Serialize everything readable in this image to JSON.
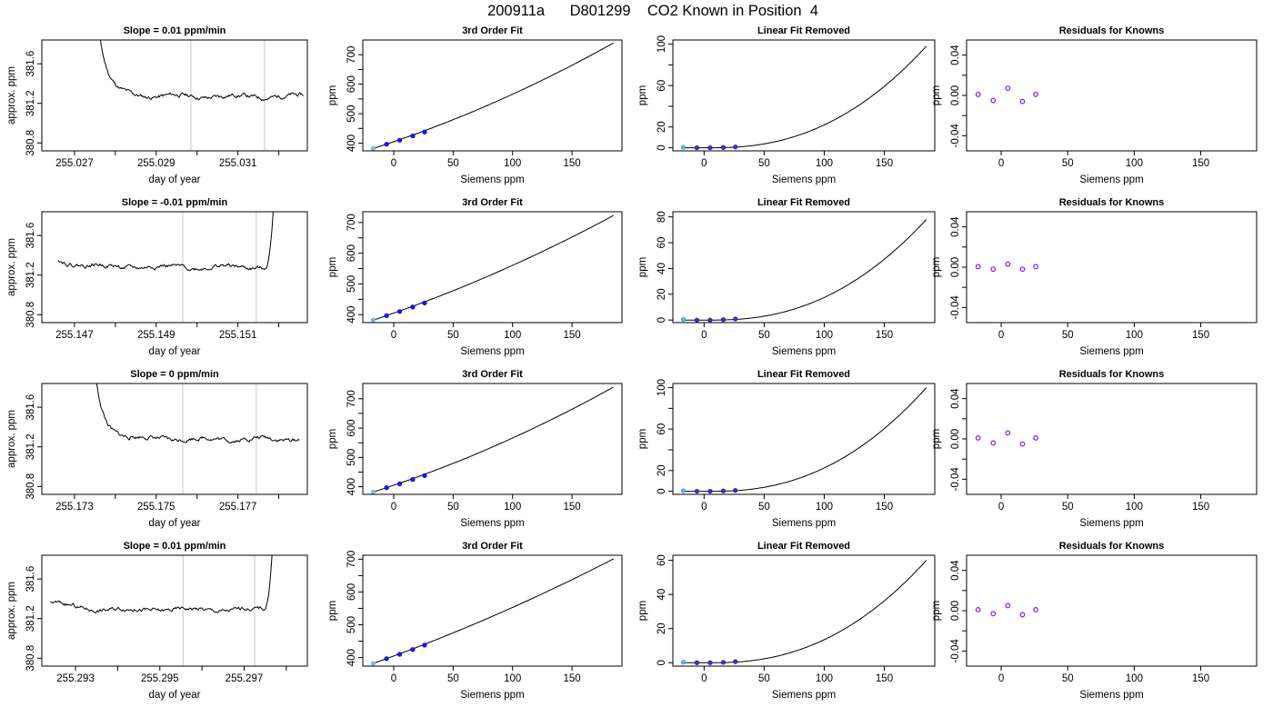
{
  "figure": {
    "title": "200911a      D801299    CO2 Known in Position  4"
  },
  "chart_data": [
    {
      "row": 1,
      "col": 1,
      "type": "line",
      "title": "Slope =  0.01  ppm/min",
      "xlabel": "day of year",
      "ylabel": "approx. ppm",
      "xlim": [
        255.0262,
        255.0327
      ],
      "ylim": [
        380.72,
        381.84
      ],
      "xticks": [
        255.027,
        255.028,
        255.029,
        255.03,
        255.031,
        255.032
      ],
      "xtick_labels": [
        "255.027",
        "",
        "255.029",
        "",
        "255.031",
        ""
      ],
      "yticks": [
        380.8,
        381.2,
        381.6
      ],
      "ytick_labels": [
        "380.8",
        "381.2",
        "381.6"
      ],
      "vlines": [
        255.02985,
        255.03165
      ],
      "trace_start": 255.0274,
      "trace_end": 255.0326,
      "trace": "decay",
      "trace_level": 381.27,
      "seed": 11
    },
    {
      "row": 1,
      "col": 2,
      "type": "line",
      "title": "3rd Order Fit",
      "xlabel": "Siemens ppm",
      "ylabel": "ppm",
      "xlim": [
        -26,
        192
      ],
      "ylim": [
        374,
        750
      ],
      "xticks": [
        0,
        50,
        100,
        150
      ],
      "yticks": [
        400,
        500,
        600,
        700
      ],
      "ytick_labels": [
        "400",
        "500",
        "600",
        "700"
      ],
      "minor_yticks": [
        450,
        550,
        650
      ],
      "points_x": [
        -17.3,
        -6,
        5,
        16,
        26
      ],
      "points_y": [
        382,
        396.6,
        410,
        424.7,
        438
      ],
      "curve_x_start": -17.3,
      "curve_x_end": 185,
      "curve_y_start": 382,
      "curve_y_end": 740
    },
    {
      "row": 1,
      "col": 3,
      "type": "line",
      "title": "Linear Fit Removed",
      "xlabel": "Siemens ppm",
      "ylabel": "ppm",
      "xlim": [
        -26,
        192
      ],
      "ylim": [
        -3,
        104
      ],
      "xticks": [
        0,
        50,
        100,
        150
      ],
      "yticks": [
        0,
        20,
        60,
        100
      ],
      "ytick_labels": [
        "0",
        "20",
        "60",
        "100"
      ],
      "minor_yticks": [
        40,
        80
      ],
      "points_x": [
        -17.3,
        -6,
        5,
        16,
        26
      ],
      "points_y": [
        0.4,
        0,
        0,
        0.3,
        0.8
      ],
      "curve_x_start": -17.3,
      "curve_x_end": 185,
      "curve_peak": 98
    },
    {
      "row": 1,
      "col": 4,
      "type": "scatter",
      "title": "Residuals for Knowns",
      "xlabel": "Siemens ppm",
      "ylabel": "ppm",
      "xlim": [
        -26,
        192
      ],
      "ylim": [
        -0.055,
        0.055
      ],
      "xticks": [
        0,
        50,
        100,
        150
      ],
      "yticks": [
        -0.04,
        0,
        0.04
      ],
      "ytick_labels": [
        "-0.04",
        "0.00",
        "0.04"
      ],
      "minor_yticks": [
        -0.02,
        0.02
      ],
      "points_x": [
        -17.3,
        -6,
        5,
        16,
        26
      ],
      "points_y": [
        0.001,
        -0.005,
        0.007,
        -0.006,
        0.001
      ]
    },
    {
      "row": 2,
      "col": 1,
      "type": "line",
      "title": "Slope =  -0.01  ppm/min",
      "xlabel": "day of year",
      "ylabel": "approx. ppm",
      "xlim": [
        255.1462,
        255.1527
      ],
      "ylim": [
        380.72,
        381.84
      ],
      "xticks": [
        255.147,
        255.148,
        255.149,
        255.15,
        255.151,
        255.152
      ],
      "xtick_labels": [
        "255.147",
        "",
        "255.149",
        "",
        "255.151",
        ""
      ],
      "yticks": [
        380.8,
        381.2,
        381.6
      ],
      "ytick_labels": [
        "380.8",
        "381.2",
        "381.6"
      ],
      "vlines": [
        255.14965,
        255.15145
      ],
      "trace_start": 255.1466,
      "trace_end": 255.152,
      "trace": "rise",
      "trace_level": 381.28,
      "seed": 22
    },
    {
      "row": 2,
      "col": 2,
      "type": "line",
      "title": "3rd Order Fit",
      "xlabel": "Siemens ppm",
      "ylabel": "ppm",
      "xlim": [
        -26,
        192
      ],
      "ylim": [
        374,
        735
      ],
      "xticks": [
        0,
        50,
        100,
        150
      ],
      "yticks": [
        400,
        500,
        600,
        700
      ],
      "ytick_labels": [
        "400",
        "500",
        "600",
        "700"
      ],
      "minor_yticks": [
        450,
        550,
        650
      ],
      "points_x": [
        -17.3,
        -6,
        5,
        16,
        26
      ],
      "points_y": [
        382,
        396.6,
        410,
        424.7,
        438
      ],
      "curve_x_start": -17.3,
      "curve_x_end": 185,
      "curve_y_start": 382,
      "curve_y_end": 723
    },
    {
      "row": 2,
      "col": 3,
      "type": "line",
      "title": "Linear Fit Removed",
      "xlabel": "Siemens ppm",
      "ylabel": "ppm",
      "xlim": [
        -26,
        192
      ],
      "ylim": [
        -2,
        84
      ],
      "xticks": [
        0,
        50,
        100,
        150
      ],
      "yticks": [
        0,
        20,
        40,
        60,
        80
      ],
      "ytick_labels": [
        "0",
        "20",
        "40",
        "60",
        "80"
      ],
      "minor_yticks": [],
      "points_x": [
        -17.3,
        -6,
        5,
        16,
        26
      ],
      "points_y": [
        0.4,
        0,
        0,
        0.3,
        0.8
      ],
      "curve_x_start": -17.3,
      "curve_x_end": 185,
      "curve_peak": 78
    },
    {
      "row": 2,
      "col": 4,
      "type": "scatter",
      "title": "Residuals for Knowns",
      "xlabel": "Siemens ppm",
      "ylabel": "ppm",
      "xlim": [
        -26,
        192
      ],
      "ylim": [
        -0.055,
        0.055
      ],
      "xticks": [
        0,
        50,
        100,
        150
      ],
      "yticks": [
        -0.04,
        0,
        0.04
      ],
      "ytick_labels": [
        "-0.04",
        "0.00",
        "0.04"
      ],
      "minor_yticks": [
        -0.02,
        0.02
      ],
      "points_x": [
        -17.3,
        -6,
        5,
        16,
        26
      ],
      "points_y": [
        0.0005,
        -0.002,
        0.003,
        -0.002,
        0.0005
      ]
    },
    {
      "row": 3,
      "col": 1,
      "type": "line",
      "title": "Slope =  0  ppm/min",
      "xlabel": "day of year",
      "ylabel": "approx. ppm",
      "xlim": [
        255.1722,
        255.1787
      ],
      "ylim": [
        380.72,
        381.84
      ],
      "xticks": [
        255.173,
        255.174,
        255.175,
        255.176,
        255.177,
        255.178
      ],
      "xtick_labels": [
        "255.173",
        "",
        "255.175",
        "",
        "255.177",
        ""
      ],
      "yticks": [
        380.8,
        381.2,
        381.6
      ],
      "ytick_labels": [
        "380.8",
        "381.2",
        "381.6"
      ],
      "vlines": [
        255.17565,
        255.17745
      ],
      "trace_start": 255.1733,
      "trace_end": 255.1785,
      "trace": "decay",
      "trace_level": 381.28,
      "seed": 33
    },
    {
      "row": 3,
      "col": 2,
      "type": "line",
      "title": "3rd Order Fit",
      "xlabel": "Siemens ppm",
      "ylabel": "ppm",
      "xlim": [
        -26,
        192
      ],
      "ylim": [
        374,
        752
      ],
      "xticks": [
        0,
        50,
        100,
        150
      ],
      "yticks": [
        400,
        500,
        600,
        700
      ],
      "ytick_labels": [
        "400",
        "500",
        "600",
        "700"
      ],
      "minor_yticks": [
        450,
        550,
        650
      ],
      "points_x": [
        -17.3,
        -6,
        5,
        16,
        26
      ],
      "points_y": [
        382,
        396.6,
        410,
        424.7,
        438
      ],
      "curve_x_start": -17.3,
      "curve_x_end": 185,
      "curve_y_start": 382,
      "curve_y_end": 740
    },
    {
      "row": 3,
      "col": 3,
      "type": "line",
      "title": "Linear Fit Removed",
      "xlabel": "Siemens ppm",
      "ylabel": "ppm",
      "xlim": [
        -26,
        192
      ],
      "ylim": [
        -3,
        104
      ],
      "xticks": [
        0,
        50,
        100,
        150
      ],
      "yticks": [
        0,
        20,
        60,
        100
      ],
      "ytick_labels": [
        "0",
        "20",
        "60",
        "100"
      ],
      "minor_yticks": [
        40,
        80
      ],
      "points_x": [
        -17.3,
        -6,
        5,
        16,
        26
      ],
      "points_y": [
        0.4,
        0,
        0,
        0.3,
        0.8
      ],
      "curve_x_start": -17.3,
      "curve_x_end": 185,
      "curve_peak": 100
    },
    {
      "row": 3,
      "col": 4,
      "type": "scatter",
      "title": "Residuals for Knowns",
      "xlabel": "Siemens ppm",
      "ylabel": "ppm",
      "xlim": [
        -26,
        192
      ],
      "ylim": [
        -0.055,
        0.055
      ],
      "xticks": [
        0,
        50,
        100,
        150
      ],
      "yticks": [
        -0.04,
        0,
        0.04
      ],
      "ytick_labels": [
        "-0.04",
        "0.00",
        "0.04"
      ],
      "minor_yticks": [
        -0.02,
        0.02
      ],
      "points_x": [
        -17.3,
        -6,
        5,
        16,
        26
      ],
      "points_y": [
        0.001,
        -0.004,
        0.006,
        -0.005,
        0.001
      ]
    },
    {
      "row": 4,
      "col": 1,
      "type": "line",
      "title": "Slope =  0.01  ppm/min",
      "xlabel": "day of year",
      "ylabel": "approx. ppm",
      "xlim": [
        255.2922,
        255.2985
      ],
      "ylim": [
        380.72,
        381.84
      ],
      "xticks": [
        255.293,
        255.294,
        255.295,
        255.296,
        255.297,
        255.298
      ],
      "xtick_labels": [
        "255.293",
        "",
        "255.295",
        "",
        "255.297",
        ""
      ],
      "yticks": [
        380.8,
        381.2,
        381.6
      ],
      "ytick_labels": [
        "380.8",
        "381.2",
        "381.6"
      ],
      "vlines": [
        255.29555,
        255.29725
      ],
      "trace_start": 255.2924,
      "trace_end": 255.2978,
      "trace": "rise",
      "trace_level": 381.29,
      "seed": 44
    },
    {
      "row": 4,
      "col": 2,
      "type": "line",
      "title": "3rd Order Fit",
      "xlabel": "Siemens ppm",
      "ylabel": "ppm",
      "xlim": [
        -26,
        192
      ],
      "ylim": [
        374,
        712
      ],
      "xticks": [
        0,
        50,
        100,
        150
      ],
      "yticks": [
        400,
        500,
        600,
        700
      ],
      "ytick_labels": [
        "400",
        "500",
        "600",
        "700"
      ],
      "minor_yticks": [
        450,
        550,
        650
      ],
      "points_x": [
        -17.3,
        -6,
        5,
        16,
        26
      ],
      "points_y": [
        382,
        396.6,
        410,
        424.7,
        438
      ],
      "curve_x_start": -17.3,
      "curve_x_end": 185,
      "curve_y_start": 382,
      "curve_y_end": 701
    },
    {
      "row": 4,
      "col": 3,
      "type": "line",
      "title": "Linear Fit Removed",
      "xlabel": "Siemens ppm",
      "ylabel": "ppm",
      "xlim": [
        -26,
        192
      ],
      "ylim": [
        -2,
        63
      ],
      "xticks": [
        0,
        50,
        100,
        150
      ],
      "yticks": [
        0,
        20,
        40,
        60
      ],
      "ytick_labels": [
        "0",
        "20",
        "40",
        "60"
      ],
      "minor_yticks": [],
      "points_x": [
        -17.3,
        -6,
        5,
        16,
        26
      ],
      "points_y": [
        0.3,
        0,
        0,
        0.2,
        0.6
      ],
      "curve_x_start": -17.3,
      "curve_x_end": 185,
      "curve_peak": 60
    },
    {
      "row": 4,
      "col": 4,
      "type": "scatter",
      "title": "Residuals for Knowns",
      "xlabel": "Siemens ppm",
      "ylabel": "ppm",
      "xlim": [
        -26,
        192
      ],
      "ylim": [
        -0.055,
        0.055
      ],
      "xticks": [
        0,
        50,
        100,
        150
      ],
      "yticks": [
        -0.04,
        0,
        0.04
      ],
      "ytick_labels": [
        "-0.04",
        "0.00",
        "0.04"
      ],
      "minor_yticks": [
        -0.02,
        0.02
      ],
      "points_x": [
        -17.3,
        -6,
        5,
        16,
        26
      ],
      "points_y": [
        0.001,
        -0.003,
        0.005,
        -0.004,
        0.001
      ]
    }
  ]
}
